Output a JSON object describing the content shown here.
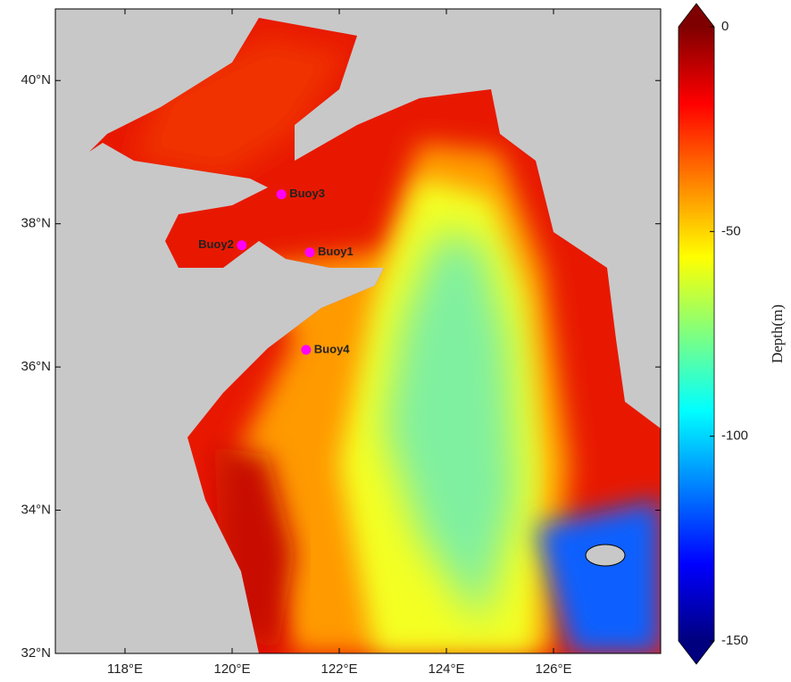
{
  "map": {
    "xlim": [
      116.7,
      128
    ],
    "ylim": [
      32,
      41
    ],
    "xticks": [
      {
        "value": 118,
        "label": "118°E"
      },
      {
        "value": 120,
        "label": "120°E"
      },
      {
        "value": 122,
        "label": "122°E"
      },
      {
        "value": 124,
        "label": "124°E"
      },
      {
        "value": 126,
        "label": "126°E"
      }
    ],
    "yticks": [
      {
        "value": 32,
        "label": "32°N"
      },
      {
        "value": 34,
        "label": "34°N"
      },
      {
        "value": 36,
        "label": "36°N"
      },
      {
        "value": 38,
        "label": "38°N"
      },
      {
        "value": 40,
        "label": "40°N"
      }
    ],
    "buoys": [
      {
        "name": "Buoy1",
        "lon": 121.45,
        "lat": 37.6
      },
      {
        "name": "Buoy2",
        "lon": 120.18,
        "lat": 37.7
      },
      {
        "name": "Buoy3",
        "lon": 120.92,
        "lat": 38.41
      },
      {
        "name": "Buoy4",
        "lon": 121.38,
        "lat": 36.24
      }
    ],
    "buoy_color": "#ff00ff",
    "colorbar": {
      "label": "Depth(m)",
      "lim": [
        -150,
        0
      ],
      "ticks": [
        0,
        -50,
        -100,
        -150
      ]
    }
  }
}
